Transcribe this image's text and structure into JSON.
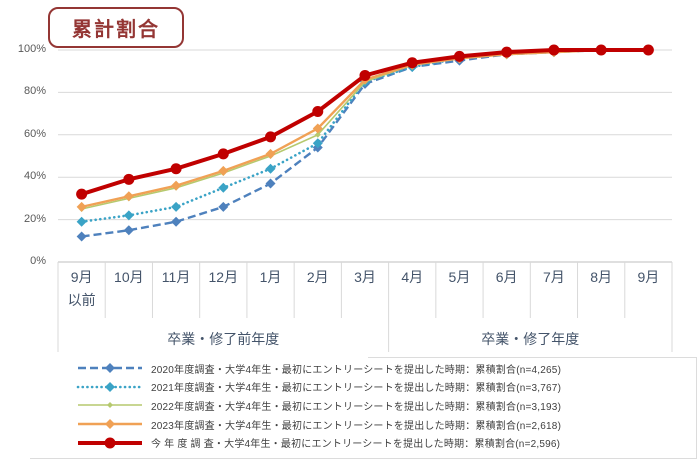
{
  "title": "累計割合",
  "colors": {
    "title_accent": "#943634",
    "grid": "#D9D9D9",
    "axis_line": "#BFBFBF",
    "y_tick_text": "#595959",
    "x_label_text": "#44546A",
    "legend_text": "#3F3F3F"
  },
  "chart_data": {
    "type": "line",
    "title": "累計割合",
    "xlabel": "",
    "ylabel": "",
    "ylim": [
      0,
      100
    ],
    "yticks": [
      "0%",
      "20%",
      "40%",
      "60%",
      "80%",
      "100%"
    ],
    "grid": true,
    "legend_position": "bottom",
    "categories": [
      "9月|以前",
      "10月",
      "11月",
      "12月",
      "1月",
      "2月",
      "3月",
      "4月",
      "5月",
      "6月",
      "7月",
      "8月",
      "9月"
    ],
    "x_groups": [
      {
        "label": "卒業・修了前年度",
        "span": 7
      },
      {
        "label": "卒業・修了年度",
        "span": 6
      }
    ],
    "series": [
      {
        "name": "2020年度調査・大学4年生・最初にエントリーシートを提出した時期：累積割合(n=4,265)",
        "color": "#4E81BD",
        "line": "dashed",
        "width": 2.4,
        "marker": "diamond",
        "marker_size": 5,
        "values": [
          12,
          15,
          19,
          26,
          37,
          54,
          84,
          92,
          95,
          98,
          99,
          100,
          100
        ]
      },
      {
        "name": "2021年度調査・大学4年生・最初にエントリーシートを提出した時期：累積割合(n=3,767)",
        "color": "#3AA3C6",
        "line": "dotted",
        "width": 2.6,
        "marker": "diamond",
        "marker_size": 5,
        "values": [
          19,
          22,
          26,
          35,
          44,
          56,
          85,
          92,
          96,
          98,
          99,
          100,
          100
        ]
      },
      {
        "name": "2022年度調査・大学4年生・最初にエントリーシートを提出した時期：累積割合(n=3,193)",
        "color": "#B6C96E",
        "line": "solid",
        "width": 1.6,
        "marker": "diamond",
        "marker_size": 3,
        "values": [
          25,
          30,
          35,
          42,
          50,
          60,
          85,
          93,
          96,
          98,
          99,
          100,
          100
        ]
      },
      {
        "name": "2023年度調査・大学4年生・最初にエントリーシートを提出した時期：累積割合(n=2,618)",
        "color": "#F0A155",
        "line": "solid",
        "width": 2.4,
        "marker": "diamond",
        "marker_size": 5,
        "values": [
          26,
          31,
          36,
          43,
          51,
          63,
          86,
          93,
          96,
          98,
          99,
          100,
          100
        ]
      },
      {
        "name": "今 年 度 調 査・大学4年生・最初にエントリーシートを提出した時期：累積割合(n=2,596)",
        "color": "#C00000",
        "line": "solid",
        "width": 4,
        "marker": "circle",
        "marker_size": 5.5,
        "values": [
          32,
          39,
          44,
          51,
          59,
          71,
          88,
          94,
          97,
          99,
          100,
          100,
          100
        ]
      }
    ]
  }
}
